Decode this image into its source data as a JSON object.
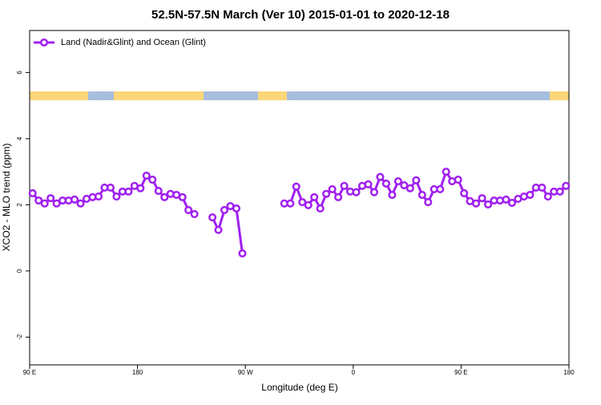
{
  "chart_data": {
    "type": "line",
    "title": "52.5N-57.5N March (Ver 10)   2015-01-01 to 2020-12-18",
    "x_label": "Longitude (deg E)",
    "y_label": "XCO2 - MLO trend (ppm)",
    "xlim": [
      90,
      540
    ],
    "ylim": [
      -2.84,
      7.27
    ],
    "xticks": [
      {
        "value": 90,
        "label": "90 E"
      },
      180,
      {
        "value": 270,
        "label": "90 W"
      },
      {
        "value": 360,
        "label": "0"
      },
      {
        "value": 450,
        "label": "90 E"
      },
      {
        "value": 540,
        "label": "180"
      }
    ],
    "yticks": [
      -2,
      0,
      2,
      4,
      6
    ],
    "legend": "top-left",
    "x": [
      92.5,
      97.5,
      102.5,
      107.5,
      112.5,
      117.5,
      122.5,
      127.5,
      132.5,
      137.5,
      142.5,
      147.5,
      152.5,
      157.5,
      162.5,
      167.5,
      172.5,
      177.5,
      182.5,
      187.5,
      192.5,
      197.5,
      202.5,
      207.5,
      212.5,
      217.5,
      222.5,
      227.5,
      232.5,
      237.5,
      242.5,
      247.5,
      252.5,
      257.5,
      262.5,
      267.5,
      272.5,
      277.5,
      282.5,
      287.5,
      292.5,
      297.5,
      302.5,
      307.5,
      312.5,
      317.5,
      322.5,
      327.5,
      332.5,
      337.5,
      342.5,
      347.5,
      352.5,
      357.5,
      362.5,
      367.5,
      372.5,
      377.5,
      382.5,
      387.5,
      392.5,
      397.5,
      402.5,
      407.5,
      412.5,
      417.5,
      422.5,
      427.5,
      432.5,
      437.5,
      442.5,
      447.5,
      452.5,
      457.5,
      462.5,
      467.5,
      472.5,
      477.5,
      482.5,
      487.5,
      492.5,
      497.5,
      502.5,
      507.5,
      512.5,
      517.5,
      522.5,
      527.5,
      532.5,
      537.5
    ],
    "series": [
      {
        "name": "Land (Nadir&Glint) and Ocean (Glint)",
        "color": "#a020f0",
        "values": [
          2.35,
          2.13,
          2.04,
          2.2,
          2.04,
          2.13,
          2.13,
          2.16,
          2.04,
          2.18,
          2.23,
          2.25,
          2.52,
          2.52,
          2.25,
          2.4,
          2.4,
          2.57,
          2.5,
          2.88,
          2.76,
          2.42,
          2.23,
          2.33,
          2.3,
          2.23,
          1.84,
          1.72,
          null,
          null,
          1.62,
          1.24,
          1.84,
          1.96,
          1.89,
          0.53,
          null,
          null,
          null,
          null,
          null,
          null,
          2.04,
          2.04,
          2.55,
          2.08,
          1.99,
          2.23,
          1.89,
          2.33,
          2.47,
          2.23,
          2.57,
          2.4,
          2.38,
          2.57,
          2.62,
          2.38,
          2.84,
          2.64,
          2.3,
          2.71,
          2.59,
          2.5,
          2.74,
          2.3,
          2.08,
          2.47,
          2.47,
          3.0,
          2.71,
          2.76,
          2.35,
          2.11,
          2.04,
          2.2,
          2.01,
          2.13,
          2.13,
          2.16,
          2.06,
          2.18,
          2.25,
          2.3,
          2.52,
          2.52,
          2.25,
          2.4,
          2.4,
          2.57
        ]
      }
    ]
  }
}
